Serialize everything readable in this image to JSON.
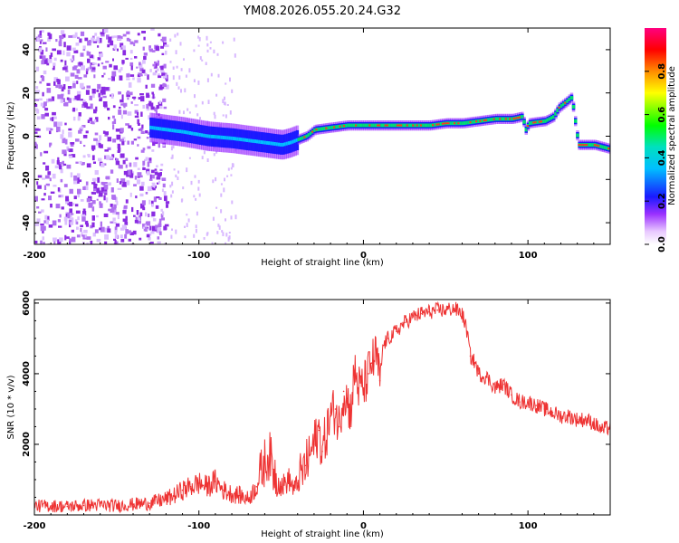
{
  "chart_data": [
    {
      "type": "heatmap",
      "title": "YM08.2026.055.20.24.G32",
      "xlabel": "Height of straight line (km)",
      "ylabel": "Frequency (Hz)",
      "xlim": [
        -200,
        150
      ],
      "ylim": [
        -50,
        50
      ],
      "xticks": [
        "-200",
        "-100",
        "0",
        "100"
      ],
      "xtick_values": [
        -200,
        -100,
        0,
        100
      ],
      "yticks": [
        "-40",
        "-20",
        "0",
        "20",
        "40"
      ],
      "ytick_values": [
        -40,
        -20,
        0,
        20,
        40
      ],
      "colorbar": {
        "label": "Normalized spectral amplitude",
        "range": [
          0,
          1
        ],
        "ticks": [
          "0.0",
          "0.2",
          "0.4",
          "0.6",
          "0.8"
        ],
        "tick_values": [
          0.0,
          0.2,
          0.4,
          0.6,
          0.8
        ]
      },
      "signal_track": {
        "description_values": "frequency (Hz) of the bright line vs height (km)",
        "x": [
          -130,
          -110,
          -95,
          -80,
          -70,
          -60,
          -50,
          -45,
          -35,
          -30,
          -20,
          -10,
          0,
          10,
          20,
          30,
          40,
          50,
          60,
          70,
          80,
          90,
          96,
          98,
          100,
          110,
          115,
          118,
          123,
          126,
          130,
          140,
          150
        ],
        "y": [
          4,
          2,
          0,
          -1,
          -2,
          -3,
          -4,
          -3,
          0,
          3,
          4,
          5,
          5,
          5,
          5,
          5,
          5,
          6,
          6,
          7,
          8,
          8,
          9,
          3,
          6,
          7,
          9,
          13,
          16,
          18,
          -4,
          -4,
          -6
        ]
      },
      "noise_region_km": [
        -200,
        -120
      ]
    },
    {
      "type": "line",
      "xlabel": "Height of straight line (km)",
      "ylabel": "SNR (10 * v/v)",
      "xlim": [
        -200,
        150
      ],
      "ylim": [
        0,
        6100
      ],
      "xticks": [
        "-200",
        "-100",
        "0",
        "100"
      ],
      "xtick_values": [
        -200,
        -100,
        0,
        100
      ],
      "yticks": [
        "2000",
        "4000",
        "6000"
      ],
      "ytick_values": [
        2000,
        4000,
        6000
      ],
      "series": [
        {
          "name": "SNR",
          "color": "#ee3333",
          "x": [
            -200,
            -190,
            -180,
            -170,
            -160,
            -150,
            -140,
            -130,
            -120,
            -115,
            -110,
            -105,
            -100,
            -95,
            -90,
            -85,
            -80,
            -75,
            -70,
            -65,
            -60,
            -57,
            -55,
            -50,
            -45,
            -42,
            -40,
            -35,
            -30,
            -27,
            -25,
            -20,
            -17,
            -15,
            -12,
            -10,
            -8,
            -5,
            -3,
            0,
            3,
            5,
            8,
            10,
            12,
            15,
            20,
            25,
            30,
            35,
            40,
            45,
            50,
            55,
            60,
            63,
            65,
            68,
            70,
            75,
            80,
            85,
            90,
            95,
            100,
            105,
            110,
            115,
            120,
            125,
            130,
            135,
            140,
            145,
            150
          ],
          "values": [
            250,
            260,
            240,
            270,
            280,
            260,
            300,
            330,
            450,
            550,
            700,
            800,
            900,
            800,
            950,
            700,
            600,
            550,
            450,
            800,
            1500,
            1700,
            1300,
            800,
            1000,
            700,
            900,
            1400,
            2000,
            2400,
            1800,
            2800,
            3000,
            2500,
            3500,
            3300,
            2900,
            4100,
            3600,
            3600,
            4000,
            4300,
            4500,
            3800,
            4800,
            5000,
            5200,
            5450,
            5600,
            5700,
            5750,
            5800,
            5800,
            5850,
            5700,
            5200,
            4500,
            4300,
            4000,
            3900,
            3600,
            3700,
            3400,
            3200,
            3200,
            3100,
            3000,
            2900,
            2800,
            2800,
            2700,
            2700,
            2600,
            2400,
            2500
          ]
        }
      ]
    }
  ]
}
